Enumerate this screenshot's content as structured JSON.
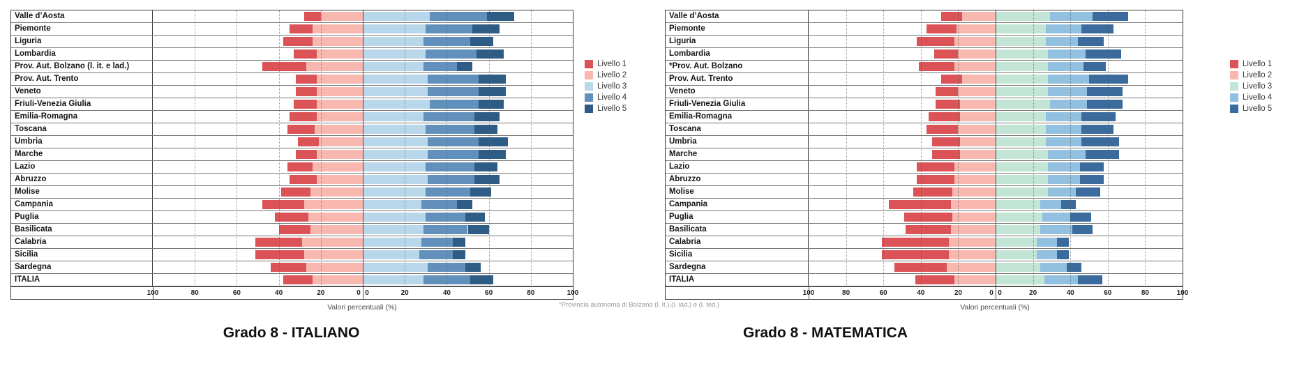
{
  "chart_data": [
    {
      "type": "bar",
      "variant": "diverging-stacked-horizontal",
      "title": "Grado 8 - ITALIANO",
      "xlabel": "Valori percentuali (%)",
      "xlim": [
        -100,
        100
      ],
      "tick_values": [
        -100,
        -80,
        -60,
        -40,
        -20,
        0,
        20,
        40,
        60,
        80,
        100
      ],
      "zero_label_both_sides": true,
      "grid": "vertical-dotted-every-20",
      "legend_position": "right",
      "left_of_zero_series": [
        "Livello 1",
        "Livello 2"
      ],
      "categories": [
        "Valle d’Aosta",
        "Piemonte",
        "Liguria",
        "Lombardia",
        "Prov. Aut. Bolzano (l. it. e lad.)",
        "Prov. Aut. Trento",
        "Veneto",
        "Friuli-Venezia Giulia",
        "Emilia-Romagna",
        "Toscana",
        "Umbria",
        "Marche",
        "Lazio",
        "Abruzzo",
        "Molise",
        "Campania",
        "Puglia",
        "Basilicata",
        "Calabria",
        "Sicilia",
        "Sardegna",
        "ITALIA"
      ],
      "series": [
        {
          "name": "Livello 1",
          "color": "#db5356",
          "values": [
            8,
            11,
            14,
            11,
            21,
            10,
            10,
            11,
            13,
            13,
            10,
            10,
            12,
            13,
            14,
            20,
            16,
            15,
            22,
            23,
            17,
            14
          ]
        },
        {
          "name": "Livello 2",
          "color": "#f8b7af",
          "values": [
            20,
            24,
            24,
            22,
            27,
            22,
            22,
            22,
            22,
            23,
            21,
            22,
            24,
            22,
            25,
            28,
            26,
            25,
            29,
            28,
            27,
            24
          ]
        },
        {
          "name": "Livello 3",
          "color": "#b9d7ea",
          "values": [
            32,
            30,
            29,
            30,
            29,
            31,
            31,
            32,
            29,
            30,
            31,
            31,
            30,
            31,
            30,
            28,
            30,
            29,
            28,
            27,
            31,
            29
          ]
        },
        {
          "name": "Livello 4",
          "color": "#6090bb",
          "values": [
            27,
            22,
            22,
            24,
            16,
            24,
            24,
            23,
            24,
            23,
            24,
            24,
            23,
            22,
            21,
            17,
            19,
            21,
            15,
            16,
            18,
            22
          ]
        },
        {
          "name": "Livello 5",
          "color": "#2e5c84",
          "values": [
            13,
            13,
            11,
            13,
            7,
            13,
            13,
            12,
            12,
            11,
            14,
            13,
            11,
            12,
            10,
            7,
            9,
            10,
            6,
            6,
            7,
            11
          ]
        }
      ]
    },
    {
      "type": "bar",
      "variant": "diverging-stacked-horizontal",
      "title": "Grado 8 - MATEMATICA",
      "xlabel": "Valori percentuali (%)",
      "footnote": "*Provincia autonoma di Bolzano (l. it.),(l. lad.) e (l. ted.)",
      "xlim": [
        -100,
        100
      ],
      "tick_values": [
        -100,
        -80,
        -60,
        -40,
        -20,
        0,
        20,
        40,
        60,
        80,
        100
      ],
      "zero_label_both_sides": true,
      "grid": "vertical-dotted-every-20",
      "legend_position": "right",
      "left_of_zero_series": [
        "Livello 1",
        "Livello 2"
      ],
      "categories": [
        "Valle d’Aosta",
        "Piemonte",
        "Liguria",
        "Lombardia",
        "*Prov. Aut. Bolzano",
        "Prov. Aut. Trento",
        "Veneto",
        "Friuli-Venezia Giulia",
        "Emilia-Romagna",
        "Toscana",
        "Umbria",
        "Marche",
        "Lazio",
        "Abruzzo",
        "Molise",
        "Campania",
        "Puglia",
        "Basilicata",
        "Calabria",
        "Sicilia",
        "Sardegna",
        "ITALIA"
      ],
      "series": [
        {
          "name": "Livello 1",
          "color": "#db5356",
          "values": [
            11,
            16,
            20,
            13,
            19,
            11,
            12,
            13,
            17,
            17,
            15,
            15,
            20,
            20,
            21,
            33,
            26,
            24,
            36,
            36,
            28,
            21
          ]
        },
        {
          "name": "Livello 2",
          "color": "#f8b7af",
          "values": [
            18,
            21,
            22,
            20,
            22,
            18,
            20,
            19,
            19,
            20,
            19,
            19,
            22,
            22,
            23,
            24,
            23,
            24,
            25,
            25,
            26,
            22
          ]
        },
        {
          "name": "Livello 3",
          "color": "#c2e5d5",
          "values": [
            29,
            27,
            27,
            28,
            28,
            28,
            28,
            29,
            27,
            27,
            27,
            28,
            28,
            28,
            28,
            24,
            25,
            24,
            22,
            22,
            24,
            26
          ]
        },
        {
          "name": "Livello 4",
          "color": "#92c0e0",
          "values": [
            23,
            19,
            17,
            20,
            19,
            22,
            21,
            20,
            19,
            19,
            19,
            20,
            17,
            17,
            15,
            11,
            15,
            17,
            11,
            11,
            14,
            18
          ]
        },
        {
          "name": "Livello 5",
          "color": "#3a6b9c",
          "values": [
            19,
            17,
            14,
            19,
            12,
            21,
            19,
            19,
            18,
            17,
            20,
            18,
            13,
            13,
            13,
            8,
            11,
            11,
            6,
            6,
            8,
            13
          ]
        }
      ]
    }
  ]
}
